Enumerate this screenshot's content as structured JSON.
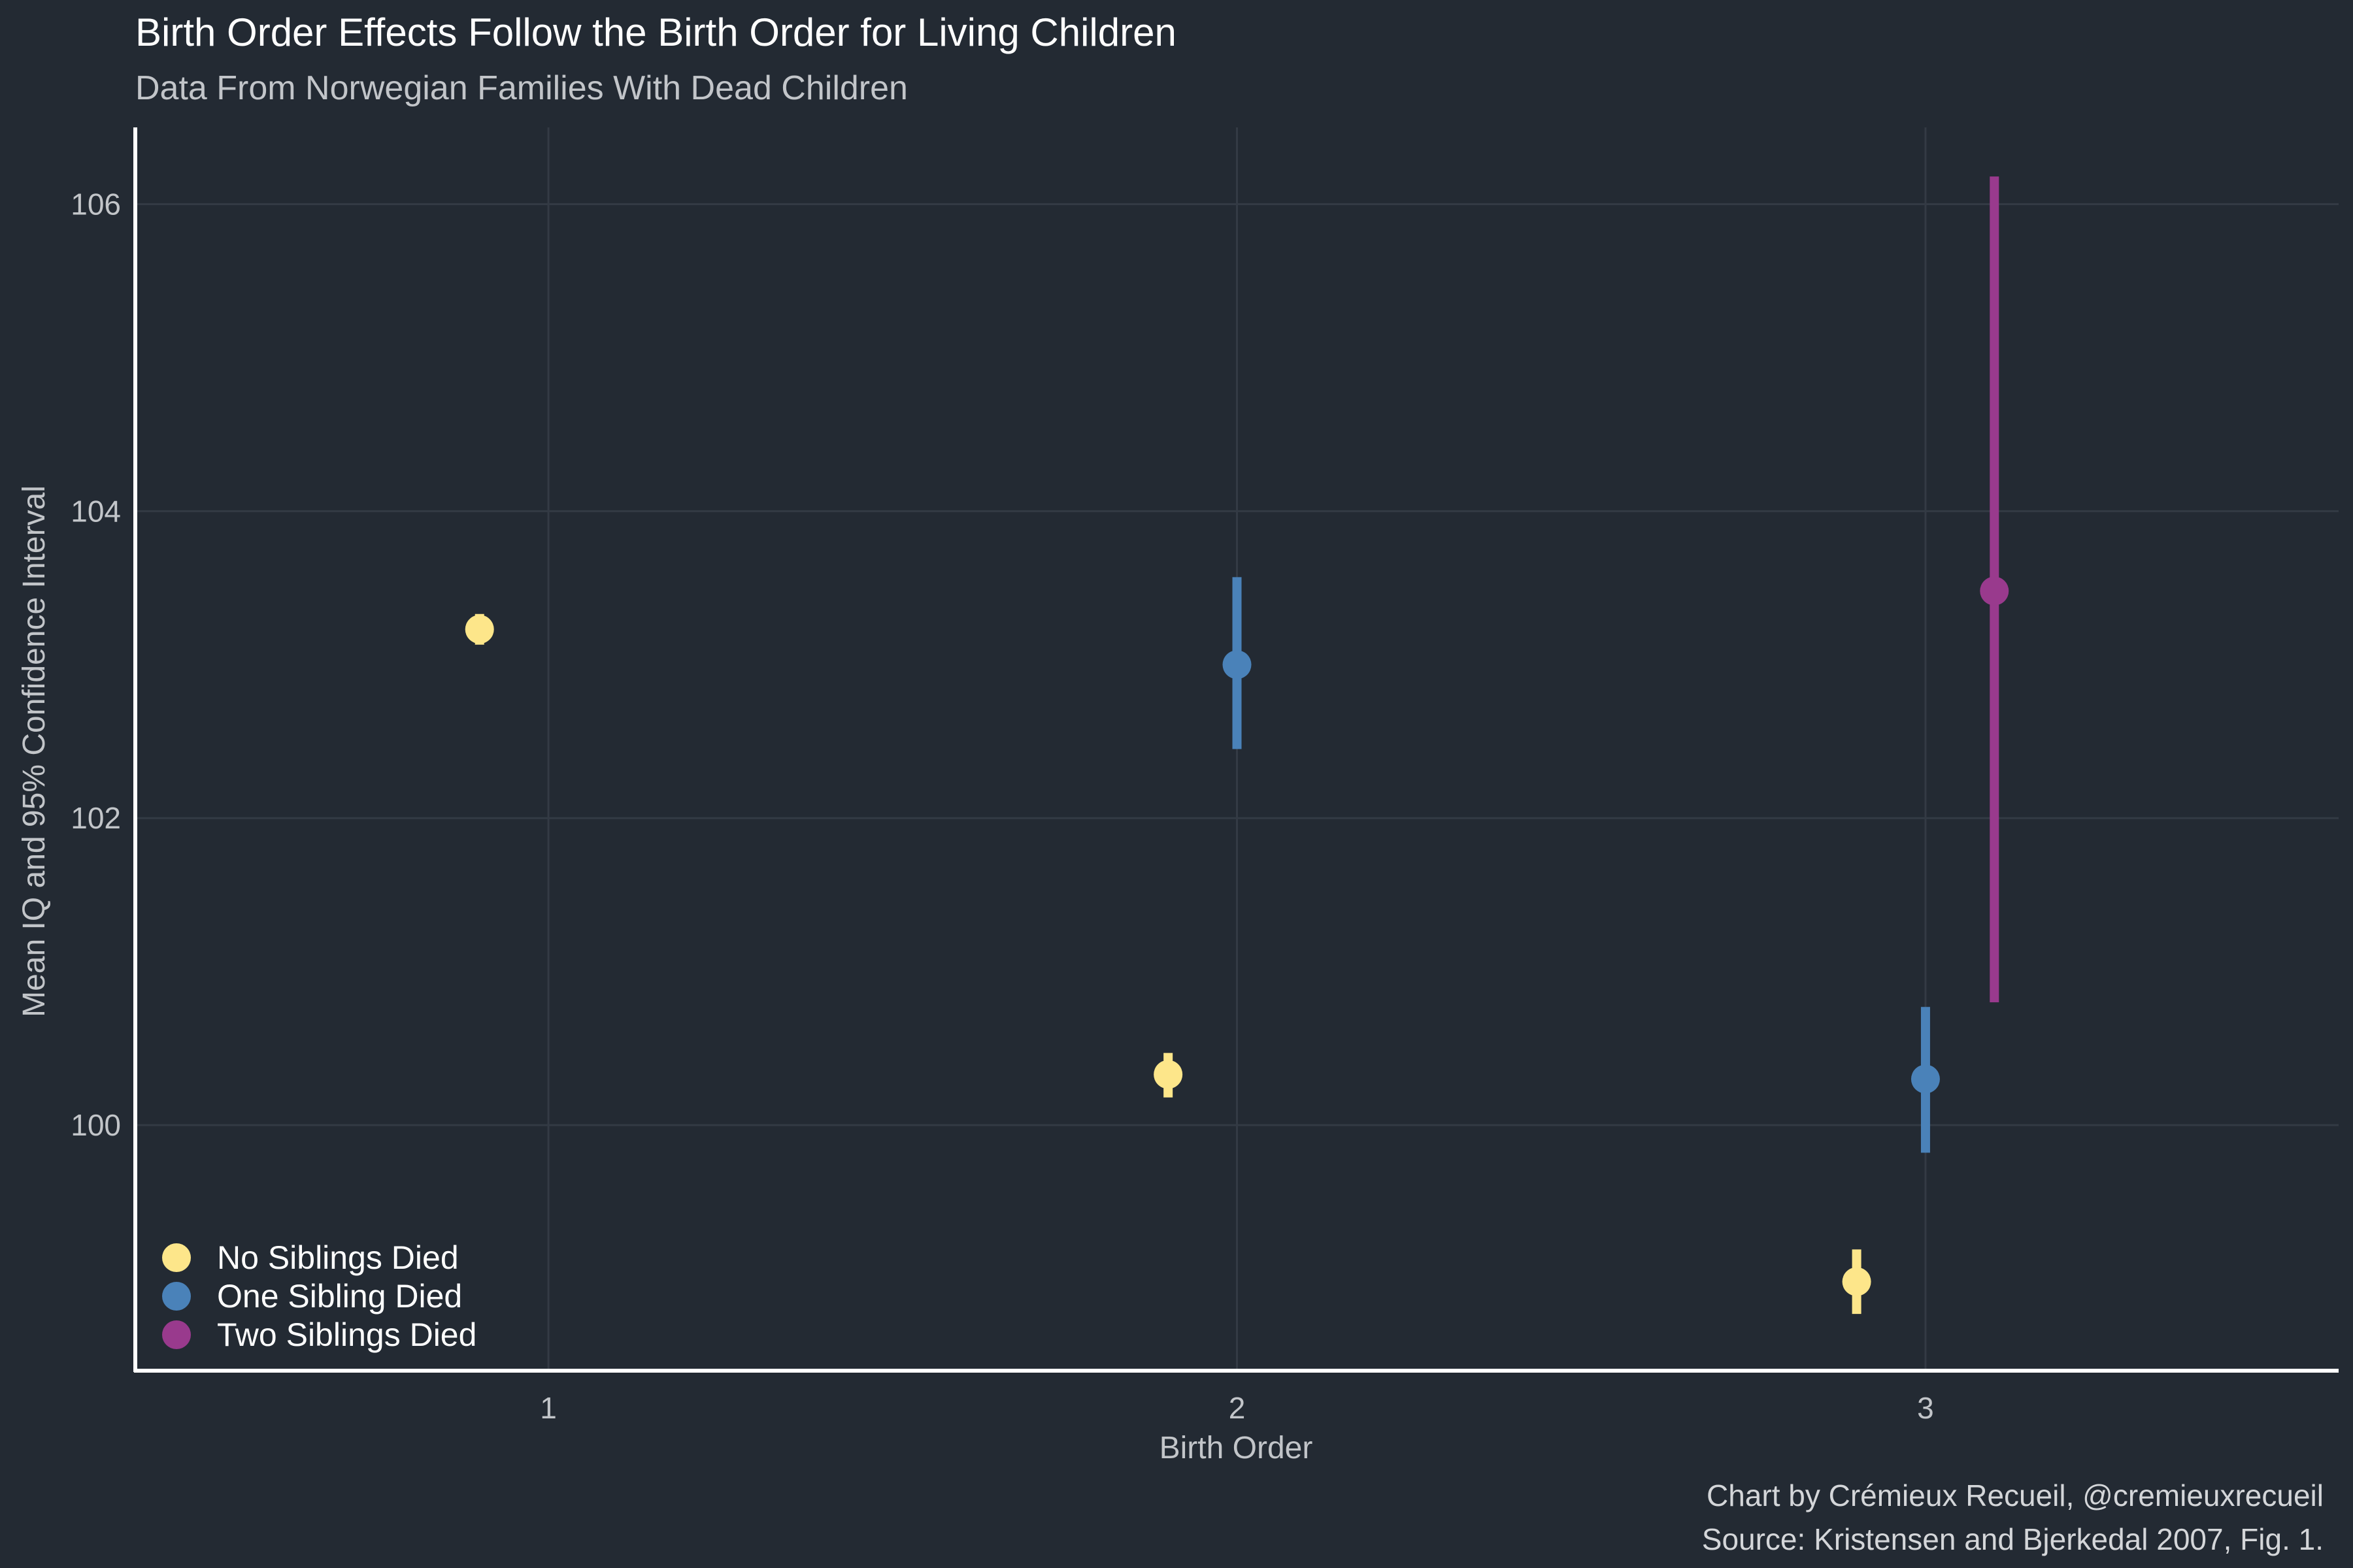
{
  "chart_data": {
    "type": "scatter",
    "title": "Birth Order Effects Follow the Birth Order for Living Children",
    "subtitle": "Data From Norwegian Families With Dead Children",
    "xlabel": "Birth Order",
    "ylabel": "Mean IQ and 95% Confidence Interval",
    "x_ticks": [
      "1",
      "2",
      "3"
    ],
    "y_ticks": [
      "100",
      "102",
      "104",
      "106"
    ],
    "xlim": [
      0.4,
      3.6
    ],
    "ylim": [
      98.4,
      106.5
    ],
    "legend_position": "bottom-left",
    "series": [
      {
        "name": "No Siblings Died",
        "color": "#fde68a",
        "points": [
          {
            "x": 1,
            "y": 103.23,
            "lo": 103.13,
            "hi": 103.33
          },
          {
            "x": 2,
            "y": 100.33,
            "lo": 100.18,
            "hi": 100.47
          },
          {
            "x": 3,
            "y": 98.98,
            "lo": 98.77,
            "hi": 99.19
          }
        ]
      },
      {
        "name": "One Sibling Died",
        "color": "#4a82b9",
        "points": [
          {
            "x": 2,
            "y": 103.0,
            "lo": 102.45,
            "hi": 103.57
          },
          {
            "x": 3,
            "y": 100.3,
            "lo": 99.82,
            "hi": 100.77
          }
        ]
      },
      {
        "name": "Two Siblings Died",
        "color": "#993a8d",
        "points": [
          {
            "x": 3,
            "y": 103.48,
            "lo": 100.8,
            "hi": 106.18
          }
        ]
      }
    ]
  },
  "caption": {
    "line1": "Chart by Crémieux Recueil, @cremieuxrecueil",
    "line2": "Source: Kristensen and Bjerkedal 2007, Fig. 1."
  }
}
